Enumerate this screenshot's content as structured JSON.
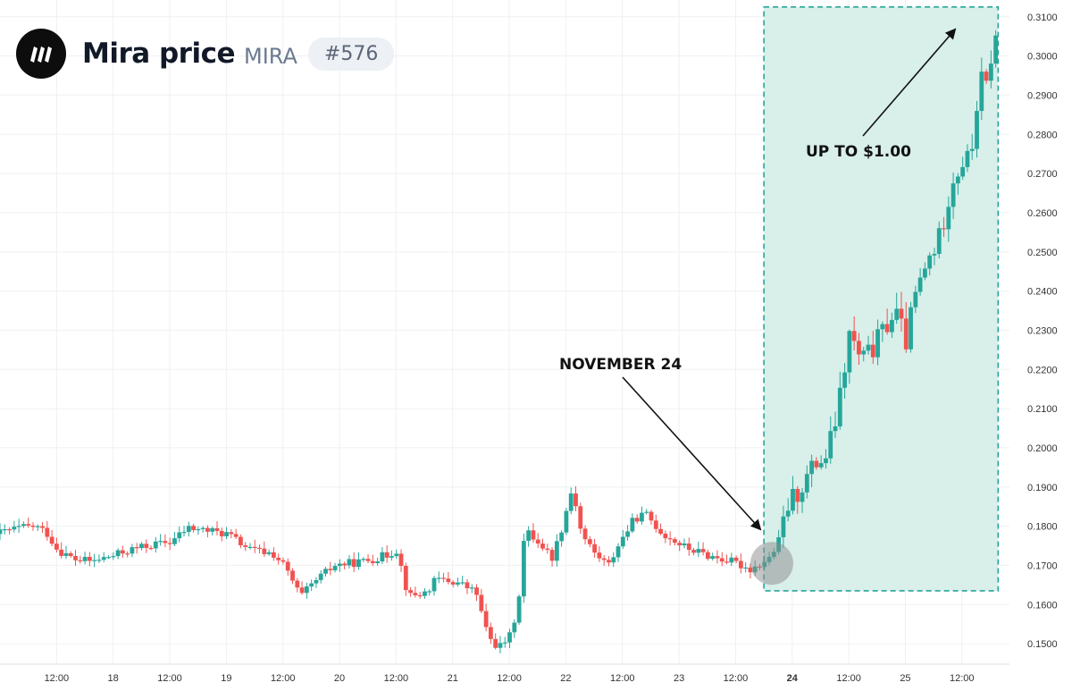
{
  "header": {
    "title": "Mira price",
    "symbol": "MIRA",
    "rank": "#576"
  },
  "annotations": {
    "left": "NOVEMBER 24",
    "right": "UP TO $1.00"
  },
  "colors": {
    "up": "#26a69a",
    "down": "#ef5350",
    "highlight_fill": "#d8efea",
    "highlight_border": "#26a69a",
    "grid": "#eef0f3"
  },
  "chart_data": {
    "type": "candlestick",
    "x_ticks": [
      "12:00",
      "18",
      "12:00",
      "19",
      "12:00",
      "20",
      "12:00",
      "21",
      "12:00",
      "22",
      "12:00",
      "23",
      "12:00",
      "24",
      "12:00",
      "25",
      "12:00"
    ],
    "x_tick_days": [
      17.5,
      18,
      18.5,
      19,
      19.5,
      20,
      20.5,
      21,
      21.5,
      22,
      22.5,
      23,
      23.5,
      24,
      24.5,
      25,
      25.5
    ],
    "y_ticks": [
      "0.1500",
      "0.1600",
      "0.1700",
      "0.1800",
      "0.1900",
      "0.2000",
      "0.2100",
      "0.2200",
      "0.2300",
      "0.2400",
      "0.2500",
      "0.2600",
      "0.2700",
      "0.2800",
      "0.2900",
      "0.3000",
      "0.3100"
    ],
    "ylim": [
      0.145,
      0.312
    ],
    "xlim": [
      17.0,
      25.92
    ],
    "highlight_range": {
      "x": [
        23.75,
        25.82
      ],
      "y": [
        0.1635,
        0.3125
      ]
    },
    "anchors": [
      [
        17.0,
        0.178
      ],
      [
        17.2,
        0.1795
      ],
      [
        17.35,
        0.18
      ],
      [
        17.45,
        0.1785
      ],
      [
        17.55,
        0.174
      ],
      [
        17.7,
        0.1715
      ],
      [
        17.85,
        0.171
      ],
      [
        18.05,
        0.1725
      ],
      [
        18.2,
        0.174
      ],
      [
        18.35,
        0.175
      ],
      [
        18.55,
        0.176
      ],
      [
        18.7,
        0.1795
      ],
      [
        18.85,
        0.179
      ],
      [
        19.05,
        0.178
      ],
      [
        19.25,
        0.174
      ],
      [
        19.45,
        0.173
      ],
      [
        19.55,
        0.17
      ],
      [
        19.7,
        0.162
      ],
      [
        19.85,
        0.1665
      ],
      [
        20.0,
        0.17
      ],
      [
        20.25,
        0.171
      ],
      [
        20.45,
        0.1725
      ],
      [
        20.55,
        0.174
      ],
      [
        20.65,
        0.162
      ],
      [
        20.8,
        0.163
      ],
      [
        20.9,
        0.1665
      ],
      [
        21.1,
        0.1655
      ],
      [
        21.25,
        0.163
      ],
      [
        21.35,
        0.152
      ],
      [
        21.45,
        0.149
      ],
      [
        21.55,
        0.152
      ],
      [
        21.62,
        0.16
      ],
      [
        21.68,
        0.179
      ],
      [
        21.8,
        0.176
      ],
      [
        21.92,
        0.172
      ],
      [
        22.0,
        0.179
      ],
      [
        22.1,
        0.19
      ],
      [
        22.18,
        0.178
      ],
      [
        22.3,
        0.173
      ],
      [
        22.42,
        0.17
      ],
      [
        22.5,
        0.175
      ],
      [
        22.65,
        0.182
      ],
      [
        22.75,
        0.183
      ],
      [
        22.9,
        0.178
      ],
      [
        23.1,
        0.1745
      ],
      [
        23.3,
        0.1725
      ],
      [
        23.5,
        0.171
      ],
      [
        23.68,
        0.169
      ],
      [
        23.85,
        0.172
      ],
      [
        23.92,
        0.176
      ],
      [
        24.0,
        0.185
      ],
      [
        24.12,
        0.19
      ],
      [
        24.25,
        0.196
      ],
      [
        24.35,
        0.198
      ],
      [
        24.45,
        0.21
      ],
      [
        24.55,
        0.229
      ],
      [
        24.65,
        0.222
      ],
      [
        24.75,
        0.225
      ],
      [
        24.85,
        0.23
      ],
      [
        24.95,
        0.235
      ],
      [
        25.05,
        0.227
      ],
      [
        25.12,
        0.238
      ],
      [
        25.25,
        0.248
      ],
      [
        25.35,
        0.254
      ],
      [
        25.45,
        0.268
      ],
      [
        25.55,
        0.273
      ],
      [
        25.62,
        0.274
      ],
      [
        25.7,
        0.294
      ],
      [
        25.76,
        0.292
      ],
      [
        25.82,
        0.304
      ]
    ]
  }
}
